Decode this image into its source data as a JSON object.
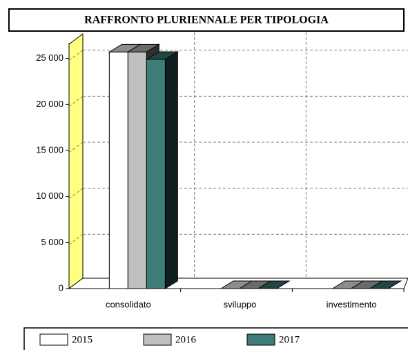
{
  "chart_data": {
    "type": "bar3d",
    "title": "RAFFRONTO PLURIENNALE PER TIPOLOGIA",
    "categories": [
      "consolidato",
      "sviluppo",
      "investimento"
    ],
    "series": [
      {
        "name": "2015",
        "color": "#ffffff",
        "values": [
          25700,
          0,
          0
        ]
      },
      {
        "name": "2016",
        "color": "#c0c0c0",
        "values": [
          25700,
          0,
          0
        ]
      },
      {
        "name": "2017",
        "color": "#3d7d7a",
        "values": [
          24900,
          0,
          0
        ]
      }
    ],
    "ylim": [
      0,
      26700
    ],
    "yticks": [
      0,
      {
        "value": 5000,
        "label": "5 000"
      },
      {
        "value": 10000,
        "label": "10 000"
      },
      {
        "value": 15000,
        "label": "15 000"
      },
      {
        "value": 20000,
        "label": "20 000"
      },
      {
        "value": 25000,
        "label": "25 000"
      }
    ],
    "grid": true,
    "wall_color": "#ffff80"
  }
}
